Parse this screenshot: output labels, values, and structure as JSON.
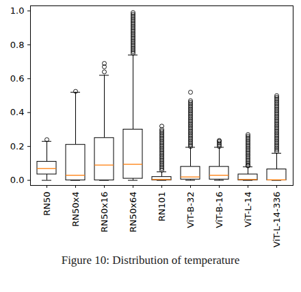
{
  "chart_data": {
    "type": "box",
    "caption": "Figure 10: Distribution of temperature",
    "categories": [
      "RN50",
      "RN50x4",
      "RN50x16",
      "RN50x64",
      "RN101",
      "ViT-B-32",
      "ViT-B-16",
      "ViT-L-14",
      "ViT-L-14-336"
    ],
    "whisker_low": [
      0,
      0,
      0,
      0,
      0,
      0,
      0,
      0,
      0
    ],
    "q1": [
      0.035,
      0,
      0,
      0.01,
      0,
      0.005,
      0.005,
      0,
      0
    ],
    "median": [
      0.07,
      0.03,
      0.09,
      0.095,
      0.005,
      0.02,
      0.03,
      0.005,
      0.003
    ],
    "q3": [
      0.11,
      0.21,
      0.25,
      0.3,
      0.02,
      0.08,
      0.08,
      0.035,
      0.065
    ],
    "whisker_high": [
      0.23,
      0.52,
      0.62,
      0.74,
      0.05,
      0.195,
      0.195,
      0.08,
      0.16
    ],
    "outliers": [
      [
        0.24
      ],
      [
        0.525
      ],
      [
        0.64,
        0.67,
        0.69
      ],
      [
        0.75,
        0.76,
        0.77,
        0.78,
        0.79,
        0.8,
        0.81,
        0.82,
        0.83,
        0.84,
        0.85,
        0.86,
        0.87,
        0.88,
        0.89,
        0.9,
        0.91,
        0.92,
        0.93,
        0.94,
        0.95,
        0.96,
        0.97,
        0.98,
        0.99
      ],
      [
        0.06,
        0.07,
        0.08,
        0.09,
        0.1,
        0.11,
        0.12,
        0.13,
        0.14,
        0.15,
        0.16,
        0.17,
        0.18,
        0.19,
        0.2,
        0.21,
        0.22,
        0.23,
        0.24,
        0.25,
        0.26,
        0.27,
        0.28,
        0.29,
        0.3,
        0.32
      ],
      [
        0.2,
        0.21,
        0.22,
        0.23,
        0.24,
        0.25,
        0.26,
        0.27,
        0.28,
        0.29,
        0.3,
        0.31,
        0.32,
        0.33,
        0.34,
        0.35,
        0.36,
        0.37,
        0.38,
        0.39,
        0.4,
        0.41,
        0.42,
        0.43,
        0.44,
        0.45,
        0.46,
        0.47,
        0.52
      ],
      [
        0.2,
        0.21,
        0.22,
        0.23,
        0.235
      ],
      [
        0.085,
        0.09,
        0.1,
        0.11,
        0.12,
        0.13,
        0.14,
        0.15,
        0.16,
        0.17,
        0.18,
        0.19,
        0.2,
        0.21,
        0.22,
        0.23,
        0.24,
        0.25,
        0.26,
        0.27
      ],
      [
        0.17,
        0.18,
        0.19,
        0.2,
        0.21,
        0.22,
        0.23,
        0.24,
        0.25,
        0.26,
        0.27,
        0.28,
        0.29,
        0.3,
        0.31,
        0.32,
        0.33,
        0.34,
        0.35,
        0.36,
        0.37,
        0.38,
        0.39,
        0.4,
        0.41,
        0.42,
        0.43,
        0.44,
        0.45,
        0.46,
        0.47,
        0.48,
        0.49,
        0.5
      ]
    ],
    "ylim": [
      -0.03,
      1.03
    ],
    "yticks": [
      {
        "value": 0,
        "label": "0.0"
      },
      0.2,
      0.4,
      0.6,
      0.8,
      {
        "value": 1,
        "label": "1.0"
      }
    ],
    "grid": false
  }
}
